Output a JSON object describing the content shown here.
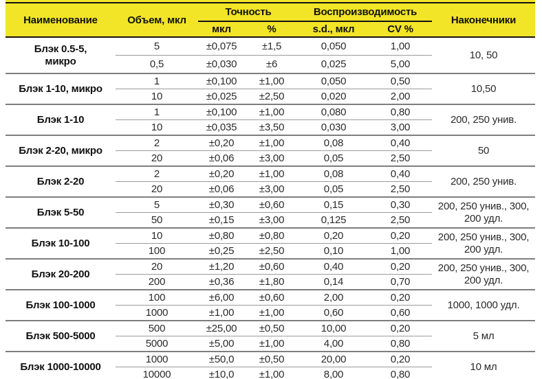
{
  "colors": {
    "header_background": "#f2e427",
    "header_border": "#121212",
    "group_separator": "#7d7d7d",
    "inner_separator": "#9a9a9a",
    "text": "#1a1a1a"
  },
  "table": {
    "header": {
      "name": "Наименование",
      "volume": "Объем, мкл",
      "accuracy": "Точность",
      "accuracy_ul": "мкл",
      "accuracy_pct": "%",
      "reproducibility": "Воспроизводимость",
      "sd": "s.d., мкл",
      "cv": "CV %",
      "tips": "Наконечники"
    },
    "rows": [
      {
        "name": "Блэк 0.5-5,\nмикро",
        "tips": "10, 50",
        "measurements": [
          {
            "volume": "5",
            "accuracy_ul": "±0,075",
            "accuracy_pct": "±1,5",
            "sd_ul": "0,050",
            "cv_pct": "1,00"
          },
          {
            "volume": "0,5",
            "accuracy_ul": "±0,030",
            "accuracy_pct": "±6",
            "sd_ul": "0,025",
            "cv_pct": "5,00"
          }
        ]
      },
      {
        "name": "Блэк 1-10, микро",
        "tips": "10,50",
        "measurements": [
          {
            "volume": "1",
            "accuracy_ul": "±0,100",
            "accuracy_pct": "±1,00",
            "sd_ul": "0,050",
            "cv_pct": "0,50"
          },
          {
            "volume": "10",
            "accuracy_ul": "±0,025",
            "accuracy_pct": "±2,50",
            "sd_ul": "0,020",
            "cv_pct": "2,00"
          }
        ]
      },
      {
        "name": "Блэк 1-10",
        "tips": "200, 250 унив.",
        "measurements": [
          {
            "volume": "1",
            "accuracy_ul": "±0,100",
            "accuracy_pct": "±1,00",
            "sd_ul": "0,080",
            "cv_pct": "0,80"
          },
          {
            "volume": "10",
            "accuracy_ul": "±0,035",
            "accuracy_pct": "±3,50",
            "sd_ul": "0,030",
            "cv_pct": "3,00"
          }
        ]
      },
      {
        "name": "Блэк 2-20, микро",
        "tips": "50",
        "measurements": [
          {
            "volume": "2",
            "accuracy_ul": "±0,20",
            "accuracy_pct": "±1,00",
            "sd_ul": "0,08",
            "cv_pct": "0,40"
          },
          {
            "volume": "20",
            "accuracy_ul": "±0,06",
            "accuracy_pct": "±3,00",
            "sd_ul": "0,05",
            "cv_pct": "2,50"
          }
        ]
      },
      {
        "name": "Блэк 2-20",
        "tips": "200, 250 унив.",
        "measurements": [
          {
            "volume": "2",
            "accuracy_ul": "±0,20",
            "accuracy_pct": "±1,00",
            "sd_ul": "0,08",
            "cv_pct": "0,40"
          },
          {
            "volume": "20",
            "accuracy_ul": "±0,06",
            "accuracy_pct": "±3,00",
            "sd_ul": "0,05",
            "cv_pct": "2,50"
          }
        ]
      },
      {
        "name": "Блэк 5-50",
        "tips": "200, 250 унив., 300,\n200 удл.",
        "measurements": [
          {
            "volume": "5",
            "accuracy_ul": "±0,30",
            "accuracy_pct": "±0,60",
            "sd_ul": "0,15",
            "cv_pct": "0,30"
          },
          {
            "volume": "50",
            "accuracy_ul": "±0,15",
            "accuracy_pct": "±3,00",
            "sd_ul": "0,125",
            "cv_pct": "2,50"
          }
        ]
      },
      {
        "name": "Блэк 10-100",
        "tips": "200, 250 унив., 300,\n200 удл.",
        "measurements": [
          {
            "volume": "10",
            "accuracy_ul": "±0,80",
            "accuracy_pct": "±0,80",
            "sd_ul": "0,20",
            "cv_pct": "0,20"
          },
          {
            "volume": "100",
            "accuracy_ul": "±0,25",
            "accuracy_pct": "±2,50",
            "sd_ul": "0,10",
            "cv_pct": "1,00"
          }
        ]
      },
      {
        "name": "Блэк 20-200",
        "tips": "200, 250 унив., 300,\n200 удл.",
        "measurements": [
          {
            "volume": "20",
            "accuracy_ul": "±1,20",
            "accuracy_pct": "±0,60",
            "sd_ul": "0,40",
            "cv_pct": "0,20"
          },
          {
            "volume": "200",
            "accuracy_ul": "±0,36",
            "accuracy_pct": "±1,80",
            "sd_ul": "0,14",
            "cv_pct": "0,70"
          }
        ]
      },
      {
        "name": "Блэк 100-1000",
        "tips": "1000, 1000 удл.",
        "measurements": [
          {
            "volume": "100",
            "accuracy_ul": "±6,00",
            "accuracy_pct": "±0,60",
            "sd_ul": "2,00",
            "cv_pct": "0,20"
          },
          {
            "volume": "1000",
            "accuracy_ul": "±1,00",
            "accuracy_pct": "±1,00",
            "sd_ul": "0,60",
            "cv_pct": "0,60"
          }
        ]
      },
      {
        "name": "Блэк 500-5000",
        "tips": "5 мл",
        "measurements": [
          {
            "volume": "500",
            "accuracy_ul": "±25,00",
            "accuracy_pct": "±0,50",
            "sd_ul": "10,00",
            "cv_pct": "0,20"
          },
          {
            "volume": "5000",
            "accuracy_ul": "±5,00",
            "accuracy_pct": "±1,00",
            "sd_ul": "4,00",
            "cv_pct": "0,80"
          }
        ]
      },
      {
        "name": "Блэк 1000-10000",
        "tips": "10 мл",
        "measurements": [
          {
            "volume": "1000",
            "accuracy_ul": "±50,0",
            "accuracy_pct": "±0,50",
            "sd_ul": "20,00",
            "cv_pct": "0,20"
          },
          {
            "volume": "10000",
            "accuracy_ul": "±10,0",
            "accuracy_pct": "±1,00",
            "sd_ul": "8,00",
            "cv_pct": "0,80"
          }
        ]
      }
    ]
  }
}
